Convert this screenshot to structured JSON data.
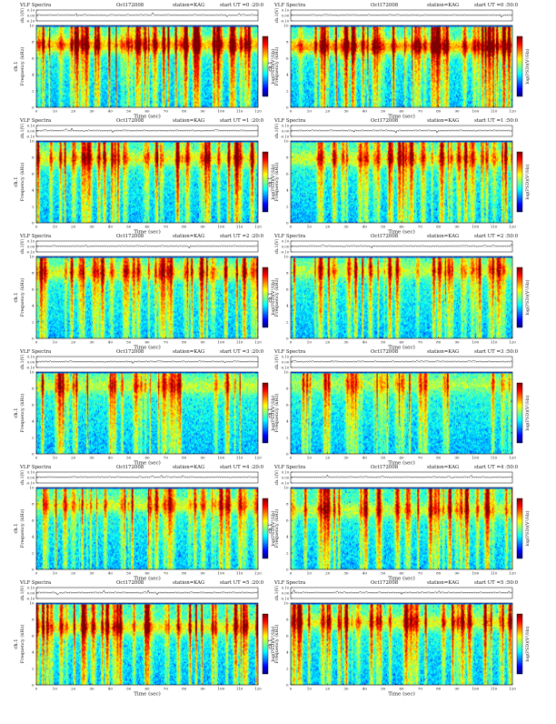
{
  "chart_data": {
    "type": "heatmap",
    "panel_header": {
      "title": "VLF Spectra",
      "date": "Oct172008",
      "station": "station=KAG"
    },
    "axes": {
      "xlabel": "Time (sec)",
      "ylabel_freq": "Frequency (kHz)",
      "ylabel_ch": "ch.1",
      "ylabel_top": "ch.1(V)",
      "colorbar_label": "log(PSD)(V²/Hz)",
      "x_ticks": [
        0,
        10,
        20,
        30,
        40,
        50,
        60,
        70,
        80,
        90,
        100,
        110,
        120
      ],
      "x_range": [
        0,
        120
      ],
      "freq_ticks": [
        0,
        2,
        4,
        6,
        8,
        10
      ],
      "freq_range": [
        0,
        10
      ],
      "amp_ticks": [
        "0.10",
        "0.00",
        "-0.10"
      ],
      "amp_range": [
        -0.1,
        0.1
      ]
    },
    "colormap": [
      "#00007f",
      "#0000ff",
      "#0080ff",
      "#00ffff",
      "#80ff80",
      "#ffff00",
      "#ff8000",
      "#ff0000",
      "#7f0000"
    ],
    "panels": [
      {
        "start": "start  UT =0 :20:0",
        "cutoff_khz": 9.8,
        "band_khz": 7.6,
        "intensity": 0.85
      },
      {
        "start": "start  UT =0 :50:0",
        "cutoff_khz": 9.9,
        "band_khz": 7.4,
        "intensity": 0.95
      },
      {
        "start": "start  UT =1 :20:0",
        "cutoff_khz": 9.8,
        "band_khz": 7.8,
        "intensity": 0.6
      },
      {
        "start": "start  UT =1 :50:0",
        "cutoff_khz": 9.8,
        "band_khz": 7.8,
        "intensity": 0.55
      },
      {
        "start": "start  UT =2 :20:0",
        "cutoff_khz": 9.8,
        "band_khz": 8.0,
        "intensity": 0.55
      },
      {
        "start": "start  UT =2 :50:0",
        "cutoff_khz": 9.8,
        "band_khz": 8.2,
        "intensity": 0.45
      },
      {
        "start": "start  UT =3 :20:0",
        "cutoff_khz": 9.8,
        "band_khz": 8.2,
        "intensity": 0.45
      },
      {
        "start": "start  UT =3 :50:0",
        "cutoff_khz": 9.8,
        "band_khz": 8.4,
        "intensity": 0.35
      },
      {
        "start": "start  UT =4 :20:0",
        "cutoff_khz": 9.8,
        "band_khz": 7.8,
        "intensity": 0.5
      },
      {
        "start": "start  UT =4 :50:0",
        "cutoff_khz": 9.8,
        "band_khz": 7.2,
        "intensity": 0.5
      },
      {
        "start": "start  UT =5 :20:0",
        "cutoff_khz": 9.8,
        "band_khz": 7.0,
        "intensity": 0.65
      },
      {
        "start": "start  UT =5 :50:0",
        "cutoff_khz": 9.8,
        "band_khz": 7.6,
        "intensity": 0.6
      }
    ]
  }
}
